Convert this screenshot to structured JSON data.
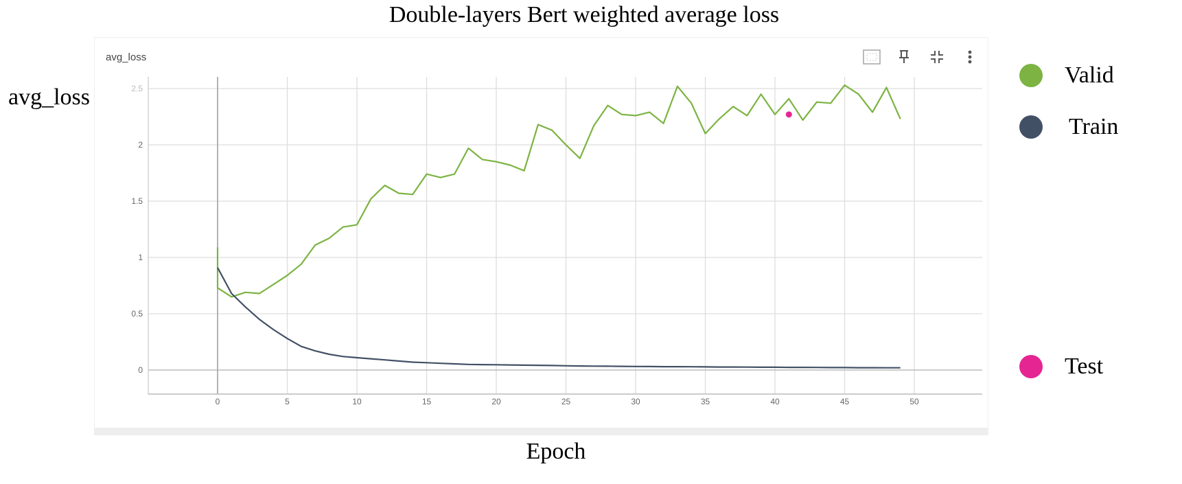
{
  "figure": {
    "title": "Double-layers Bert weighted average loss",
    "y_axis_title": "avg_loss",
    "x_axis_title": "Epoch"
  },
  "card": {
    "title": "avg_loss",
    "toolbar": [
      {
        "icon": "fit-to-data-icon"
      },
      {
        "icon": "pin-icon"
      },
      {
        "icon": "collapse-icon"
      },
      {
        "icon": "more-vert-icon"
      }
    ]
  },
  "legend": [
    {
      "label": "Valid",
      "color": "#7cb342"
    },
    {
      "label": "Train",
      "color": "#425066"
    },
    {
      "label": "Test",
      "color": "#e52592"
    }
  ],
  "chart_data": {
    "type": "line",
    "title": "avg_loss",
    "xlabel": "Epoch",
    "ylabel": "avg_loss",
    "xlim": [
      -5,
      55
    ],
    "ylim": [
      -0.2,
      2.6
    ],
    "x_ticks": [
      0,
      5,
      10,
      15,
      20,
      25,
      30,
      35,
      40,
      45,
      50
    ],
    "y_ticks": [
      0,
      0.5,
      1,
      1.5,
      2,
      2.5
    ],
    "y_tick_labels": [
      "0",
      "0.5",
      "1",
      "1.5",
      "2",
      "2.5"
    ],
    "grid": true,
    "legend_position": "right",
    "series": [
      {
        "name": "Valid",
        "color": "#7cb342",
        "points": [
          [
            0,
            1.09
          ],
          [
            0,
            0.73
          ],
          [
            1,
            0.65
          ],
          [
            2,
            0.69
          ],
          [
            3,
            0.68
          ],
          [
            4,
            0.76
          ],
          [
            5,
            0.84
          ],
          [
            6,
            0.94
          ],
          [
            7,
            1.11
          ],
          [
            8,
            1.17
          ],
          [
            9,
            1.27
          ],
          [
            10,
            1.29
          ],
          [
            11,
            1.52
          ],
          [
            12,
            1.64
          ],
          [
            13,
            1.57
          ],
          [
            14,
            1.56
          ],
          [
            15,
            1.74
          ],
          [
            16,
            1.71
          ],
          [
            17,
            1.74
          ],
          [
            18,
            1.97
          ],
          [
            19,
            1.87
          ],
          [
            20,
            1.85
          ],
          [
            21,
            1.82
          ],
          [
            22,
            1.77
          ],
          [
            23,
            2.18
          ],
          [
            24,
            2.13
          ],
          [
            25,
            2.0
          ],
          [
            26,
            1.88
          ],
          [
            27,
            2.17
          ],
          [
            28,
            2.35
          ],
          [
            29,
            2.27
          ],
          [
            30,
            2.26
          ],
          [
            31,
            2.29
          ],
          [
            32,
            2.19
          ],
          [
            33,
            2.52
          ],
          [
            34,
            2.37
          ],
          [
            35,
            2.1
          ],
          [
            36,
            2.23
          ],
          [
            37,
            2.34
          ],
          [
            38,
            2.26
          ],
          [
            39,
            2.45
          ],
          [
            40,
            2.27
          ],
          [
            41,
            2.41
          ],
          [
            42,
            2.22
          ],
          [
            43,
            2.38
          ],
          [
            44,
            2.37
          ],
          [
            45,
            2.53
          ],
          [
            46,
            2.45
          ],
          [
            47,
            2.29
          ],
          [
            48,
            2.51
          ],
          [
            49,
            2.23
          ]
        ]
      },
      {
        "name": "Train",
        "color": "#425066",
        "points": [
          [
            0,
            0.91
          ],
          [
            1,
            0.68
          ],
          [
            2,
            0.56
          ],
          [
            3,
            0.45
          ],
          [
            4,
            0.36
          ],
          [
            5,
            0.28
          ],
          [
            6,
            0.21
          ],
          [
            7,
            0.17
          ],
          [
            8,
            0.14
          ],
          [
            9,
            0.12
          ],
          [
            10,
            0.11
          ],
          [
            11,
            0.1
          ],
          [
            12,
            0.09
          ],
          [
            13,
            0.08
          ],
          [
            14,
            0.07
          ],
          [
            15,
            0.065
          ],
          [
            16,
            0.06
          ],
          [
            17,
            0.055
          ],
          [
            18,
            0.05
          ],
          [
            19,
            0.048
          ],
          [
            20,
            0.047
          ],
          [
            21,
            0.045
          ],
          [
            22,
            0.043
          ],
          [
            23,
            0.042
          ],
          [
            24,
            0.04
          ],
          [
            25,
            0.038
          ],
          [
            26,
            0.036
          ],
          [
            27,
            0.035
          ],
          [
            28,
            0.034
          ],
          [
            29,
            0.033
          ],
          [
            30,
            0.032
          ],
          [
            31,
            0.031
          ],
          [
            32,
            0.03
          ],
          [
            33,
            0.03
          ],
          [
            34,
            0.029
          ],
          [
            35,
            0.028
          ],
          [
            36,
            0.027
          ],
          [
            37,
            0.027
          ],
          [
            38,
            0.026
          ],
          [
            39,
            0.025
          ],
          [
            40,
            0.025
          ],
          [
            41,
            0.024
          ],
          [
            42,
            0.024
          ],
          [
            43,
            0.023
          ],
          [
            44,
            0.022
          ],
          [
            45,
            0.022
          ],
          [
            46,
            0.021
          ],
          [
            47,
            0.021
          ],
          [
            48,
            0.02
          ],
          [
            49,
            0.02
          ]
        ]
      },
      {
        "name": "Test",
        "color": "#e52592",
        "points": [
          [
            41,
            2.27
          ]
        ],
        "style": "point"
      }
    ]
  }
}
